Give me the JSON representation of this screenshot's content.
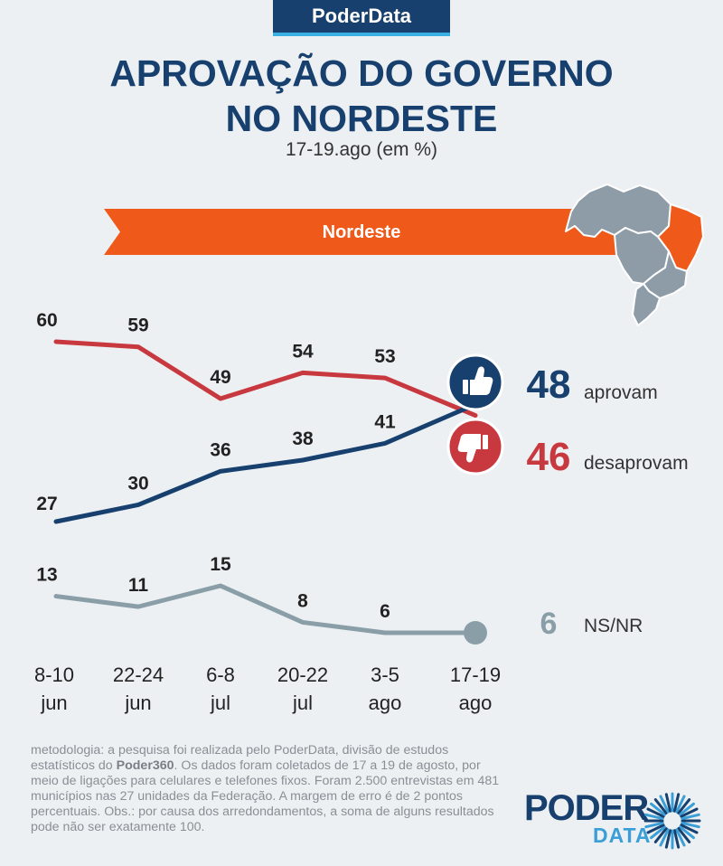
{
  "header": {
    "brand": "PoderData",
    "title_line1": "APROVAÇÃO DO GOVERNO",
    "title_line2": "NO NORDESTE",
    "subtitle": "17-19.ago (em %)"
  },
  "region": {
    "label": "Nordeste",
    "color": "#ef5a1b"
  },
  "chart_data": {
    "type": "line",
    "categories": [
      [
        "8-10",
        "jun"
      ],
      [
        "22-24",
        "jun"
      ],
      [
        "6-8",
        "jul"
      ],
      [
        "20-22",
        "jul"
      ],
      [
        "3-5",
        "ago"
      ],
      [
        "17-19",
        "ago"
      ]
    ],
    "series": [
      {
        "name": "desaprovam",
        "color": "#c8393f",
        "values": [
          60,
          59,
          49,
          54,
          53,
          46
        ]
      },
      {
        "name": "aprovam",
        "color": "#17406e",
        "values": [
          27,
          30,
          36,
          38,
          41,
          48
        ]
      },
      {
        "name": "NS/NR",
        "color": "#8a9ea8",
        "values": [
          13,
          11,
          15,
          8,
          6,
          6
        ]
      }
    ],
    "icons": {
      "approve": "thumbs-up-icon",
      "disapprove": "thumbs-down-icon"
    }
  },
  "footnote": {
    "text_before": "metodologia: a pesquisa foi realizada pelo PoderData, divisão de estudos estatísticos do ",
    "bold": "Poder360",
    "text_after": ". Os dados foram coletados de 17 a 19 de agosto, por meio de ligações para celulares e telefones fixos. Foram 2.500 entrevistas em 481 municípios nas 27 unidades da Federação. A margem de erro é de 2 pontos percentuais. Obs.: por causa dos arredondamentos, a soma de alguns resultados pode não ser exatamente 100."
  },
  "logo": {
    "line1": "PODER",
    "line2": "DATA"
  }
}
